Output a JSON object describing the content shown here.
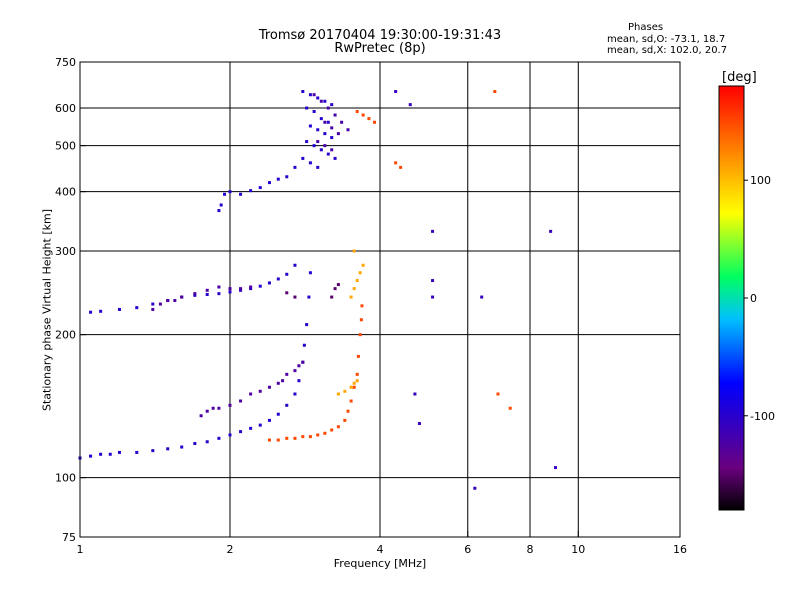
{
  "chart_data": {
    "type": "scatter",
    "title": "Tromsø 20170404 19:30:00-19:31:43",
    "subtitle": "RwPretec (8p)",
    "xlabel": "Frequency [MHz]",
    "ylabel": "Stationary phase Virtual Height [km]",
    "xscale": "log",
    "yscale": "log",
    "xlim": [
      1,
      16
    ],
    "ylim": [
      75,
      750
    ],
    "xticks": [
      1,
      2,
      4,
      6,
      8,
      10,
      16
    ],
    "yticks": [
      75,
      100,
      200,
      300,
      400,
      500,
      600,
      750
    ],
    "grid": true,
    "phases": {
      "title": "Phases",
      "mean_sd_o": "mean, sd,O: -73.1, 18.7",
      "mean_sd_x": "mean, sd,X: 102.0, 20.7"
    },
    "colorbar": {
      "label": "[deg]",
      "range": [
        -180,
        180
      ],
      "ticks": [
        100,
        0,
        -100
      ],
      "colormap": "rainbow (black-purple-blue-cyan-green-yellow-orange-red)"
    },
    "series": [
      {
        "phase": -100,
        "points": [
          [
            1,
            110
          ],
          [
            1.05,
            111
          ],
          [
            1.1,
            112
          ],
          [
            1.15,
            112
          ],
          [
            1.2,
            113
          ],
          [
            1.3,
            113
          ],
          [
            1.4,
            114
          ],
          [
            1.5,
            115
          ],
          [
            1.6,
            116
          ],
          [
            1.7,
            118
          ],
          [
            1.8,
            119
          ],
          [
            1.9,
            121
          ],
          [
            2.0,
            123
          ],
          [
            2.1,
            125
          ],
          [
            2.2,
            127
          ],
          [
            2.3,
            129
          ],
          [
            2.4,
            132
          ],
          [
            2.5,
            136
          ],
          [
            2.6,
            142
          ],
          [
            2.7,
            150
          ],
          [
            2.75,
            160
          ],
          [
            2.8,
            175
          ],
          [
            2.82,
            190
          ],
          [
            2.85,
            210
          ],
          [
            2.88,
            240
          ],
          [
            2.9,
            270
          ]
        ]
      },
      {
        "phase": -100,
        "points": [
          [
            1.05,
            223
          ],
          [
            1.1,
            224
          ],
          [
            1.2,
            226
          ],
          [
            1.3,
            228
          ],
          [
            1.4,
            232
          ],
          [
            1.5,
            236
          ],
          [
            1.6,
            240
          ],
          [
            1.7,
            242
          ],
          [
            1.8,
            243
          ],
          [
            1.9,
            244
          ],
          [
            2.0,
            246
          ],
          [
            2.1,
            248
          ],
          [
            2.2,
            250
          ],
          [
            2.3,
            253
          ],
          [
            2.4,
            257
          ],
          [
            2.5,
            262
          ],
          [
            2.6,
            268
          ],
          [
            2.7,
            280
          ]
        ]
      },
      {
        "phase": -125,
        "points": [
          [
            1.4,
            226
          ],
          [
            1.45,
            232
          ],
          [
            1.5,
            236
          ],
          [
            1.55,
            236
          ],
          [
            1.6,
            240
          ],
          [
            1.7,
            244
          ],
          [
            1.8,
            248
          ],
          [
            1.9,
            252
          ],
          [
            2.0,
            250
          ],
          [
            2.1,
            250
          ],
          [
            2.2,
            252
          ]
        ]
      },
      {
        "phase": -125,
        "points": [
          [
            1.75,
            135
          ],
          [
            1.8,
            138
          ],
          [
            1.85,
            140
          ],
          [
            1.9,
            140
          ],
          [
            2.0,
            142
          ],
          [
            2.1,
            145
          ],
          [
            2.2,
            150
          ],
          [
            2.3,
            152
          ],
          [
            2.4,
            155
          ],
          [
            2.5,
            158
          ],
          [
            2.55,
            160
          ],
          [
            2.6,
            165
          ],
          [
            2.7,
            168
          ],
          [
            2.75,
            172
          ],
          [
            2.8,
            175
          ]
        ]
      },
      {
        "phase": -100,
        "points": [
          [
            1.9,
            365
          ],
          [
            1.92,
            375
          ],
          [
            1.95,
            395
          ],
          [
            2.0,
            400
          ],
          [
            2.1,
            395
          ],
          [
            2.2,
            402
          ],
          [
            2.3,
            408
          ],
          [
            2.4,
            418
          ],
          [
            2.5,
            425
          ],
          [
            2.6,
            430
          ],
          [
            2.7,
            450
          ],
          [
            2.8,
            470
          ]
        ]
      },
      {
        "phase": -100,
        "points": [
          [
            2.8,
            650
          ],
          [
            2.9,
            640
          ],
          [
            3.0,
            630
          ],
          [
            3.1,
            620
          ],
          [
            3.2,
            610
          ],
          [
            2.85,
            600
          ],
          [
            2.95,
            590
          ],
          [
            3.05,
            570
          ],
          [
            3.15,
            560
          ],
          [
            2.9,
            550
          ],
          [
            3.0,
            540
          ],
          [
            3.1,
            530
          ],
          [
            3.2,
            520
          ],
          [
            2.85,
            510
          ],
          [
            2.95,
            500
          ],
          [
            3.05,
            490
          ],
          [
            3.15,
            480
          ],
          [
            3.25,
            470
          ],
          [
            2.9,
            460
          ],
          [
            3.0,
            450
          ]
        ]
      },
      {
        "phase": -120,
        "points": [
          [
            2.95,
            640
          ],
          [
            3.05,
            620
          ],
          [
            3.15,
            600
          ],
          [
            3.25,
            580
          ],
          [
            3.35,
            560
          ],
          [
            3.45,
            540
          ],
          [
            3.1,
            560
          ],
          [
            3.2,
            545
          ],
          [
            3.3,
            530
          ],
          [
            3.0,
            510
          ],
          [
            3.1,
            500
          ],
          [
            3.2,
            490
          ]
        ]
      },
      {
        "phase": 150,
        "points": [
          [
            2.4,
            120
          ],
          [
            2.5,
            120
          ],
          [
            2.6,
            121
          ],
          [
            2.7,
            121
          ],
          [
            2.8,
            122
          ],
          [
            2.9,
            122
          ],
          [
            3.0,
            123
          ],
          [
            3.1,
            124
          ],
          [
            3.2,
            126
          ],
          [
            3.3,
            128
          ],
          [
            3.4,
            132
          ],
          [
            3.45,
            138
          ],
          [
            3.5,
            145
          ],
          [
            3.55,
            155
          ],
          [
            3.6,
            165
          ],
          [
            3.62,
            180
          ],
          [
            3.65,
            200
          ],
          [
            3.67,
            215
          ],
          [
            3.68,
            230
          ]
        ]
      },
      {
        "phase": 110,
        "points": [
          [
            3.3,
            150
          ],
          [
            3.4,
            152
          ],
          [
            3.5,
            155
          ],
          [
            3.55,
            158
          ],
          [
            3.6,
            160
          ],
          [
            3.5,
            240
          ],
          [
            3.55,
            250
          ],
          [
            3.6,
            260
          ],
          [
            3.65,
            270
          ],
          [
            3.7,
            280
          ],
          [
            3.55,
            300
          ]
        ]
      },
      {
        "phase": 150,
        "points": [
          [
            3.8,
            570
          ],
          [
            3.7,
            580
          ],
          [
            3.6,
            590
          ],
          [
            3.9,
            560
          ],
          [
            4.3,
            460
          ],
          [
            4.4,
            450
          ],
          [
            6.8,
            650
          ],
          [
            6.9,
            150
          ],
          [
            7.3,
            140
          ]
        ]
      },
      {
        "phase": -150,
        "points": [
          [
            3.2,
            240
          ],
          [
            3.25,
            250
          ],
          [
            3.3,
            255
          ],
          [
            2.7,
            240
          ],
          [
            2.6,
            245
          ]
        ]
      },
      {
        "phase": -110,
        "points": [
          [
            4.3,
            650
          ],
          [
            4.6,
            610
          ],
          [
            5.1,
            330
          ],
          [
            5.1,
            260
          ],
          [
            5.1,
            240
          ],
          [
            4.8,
            130
          ],
          [
            4.7,
            150
          ],
          [
            6.2,
            95
          ],
          [
            9.0,
            105
          ],
          [
            8.8,
            330
          ],
          [
            6.4,
            240
          ]
        ]
      }
    ]
  }
}
